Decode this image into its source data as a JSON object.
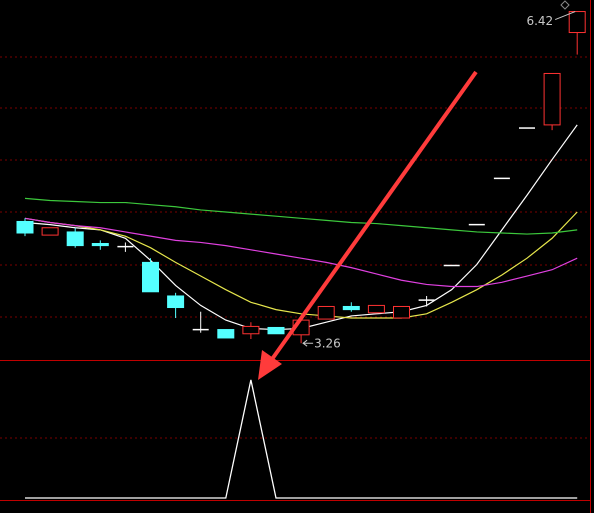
{
  "chart_data": [
    {
      "type": "candlestick",
      "ylim": [
        3.1,
        6.53
      ],
      "up_color": "#ff3232",
      "down_color": "#54ffff",
      "flat_color": "#ffffff",
      "open": [
        4.42,
        4.29,
        4.32,
        4.21,
        4.18,
        4.03,
        3.71,
        3.39,
        3.39,
        3.35,
        3.41,
        3.34,
        3.49,
        3.61,
        3.55,
        3.5,
        3.67,
        4.0,
        4.39,
        4.83,
        5.31,
        5.34,
        6.22
      ],
      "high": [
        4.45,
        4.36,
        4.36,
        4.24,
        4.22,
        4.07,
        3.74,
        3.56,
        3.39,
        3.46,
        3.41,
        3.51,
        3.61,
        3.65,
        3.62,
        3.61,
        3.71,
        4.0,
        4.39,
        4.83,
        5.31,
        5.83,
        6.42
      ],
      "low": [
        4.28,
        4.29,
        4.17,
        4.15,
        4.13,
        3.75,
        3.5,
        3.36,
        3.31,
        3.3,
        3.35,
        3.26,
        3.49,
        3.56,
        3.55,
        3.5,
        3.61,
        4.0,
        4.39,
        4.83,
        5.31,
        5.29,
        6.01
      ],
      "close": [
        4.31,
        4.36,
        4.19,
        4.19,
        4.18,
        3.75,
        3.6,
        3.39,
        3.31,
        3.42,
        3.35,
        3.48,
        3.61,
        3.58,
        3.62,
        3.61,
        3.67,
        4.0,
        4.39,
        4.83,
        5.31,
        5.83,
        6.42
      ],
      "lines": [
        {
          "color": "#ffffff",
          "values": [
            4.41,
            4.39,
            4.36,
            4.34,
            4.26,
            4.05,
            3.81,
            3.62,
            3.48,
            3.4,
            3.39,
            3.4,
            3.46,
            3.52,
            3.54,
            3.56,
            3.62,
            3.77,
            4.01,
            4.34,
            4.67,
            5.01,
            5.34
          ]
        },
        {
          "color": "#e6e64c",
          "values": [
            4.45,
            4.41,
            4.38,
            4.34,
            4.28,
            4.17,
            4.03,
            3.9,
            3.77,
            3.65,
            3.58,
            3.54,
            3.52,
            3.5,
            3.5,
            3.5,
            3.54,
            3.65,
            3.77,
            3.91,
            4.07,
            4.26,
            4.51
          ]
        },
        {
          "color": "#e040e0",
          "values": [
            4.45,
            4.41,
            4.38,
            4.36,
            4.32,
            4.28,
            4.24,
            4.22,
            4.19,
            4.15,
            4.11,
            4.07,
            4.03,
            3.98,
            3.92,
            3.86,
            3.82,
            3.8,
            3.8,
            3.84,
            3.9,
            3.96,
            4.07
          ]
        },
        {
          "color": "#3cc83c",
          "values": [
            4.64,
            4.62,
            4.61,
            4.6,
            4.6,
            4.58,
            4.56,
            4.53,
            4.51,
            4.49,
            4.47,
            4.45,
            4.43,
            4.41,
            4.4,
            4.38,
            4.36,
            4.34,
            4.32,
            4.31,
            4.3,
            4.31,
            4.34
          ]
        }
      ]
    },
    {
      "type": "line",
      "ylim": [
        0,
        1.16
      ],
      "color": "#ffffff",
      "values": [
        0,
        0,
        0,
        0,
        0,
        0,
        0,
        0,
        0,
        1,
        0,
        0,
        0,
        0,
        0,
        0,
        0,
        0,
        0,
        0,
        0,
        0,
        0
      ]
    }
  ]
}
